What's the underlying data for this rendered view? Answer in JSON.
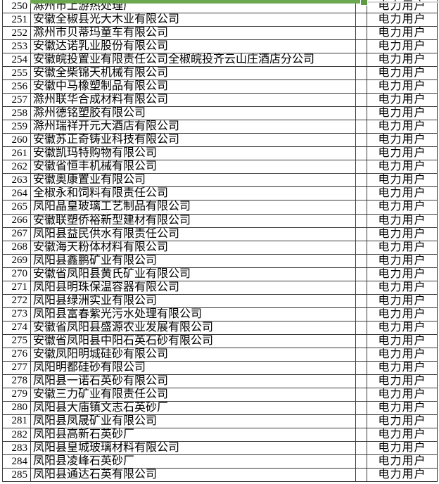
{
  "selection": {
    "border_color": "#6CA850",
    "handle_color": "#5E9A43"
  },
  "table": {
    "rows": [
      {
        "no": "250",
        "name": "滁州市上游热处理厂",
        "type": "电力用户"
      },
      {
        "no": "251",
        "name": "安徽全椒县光大木业有限公司",
        "type": "电力用户"
      },
      {
        "no": "252",
        "name": "滁州市贝蒂玛童车有限公司",
        "type": "电力用户"
      },
      {
        "no": "253",
        "name": "安徽达诺乳业股份有限公司",
        "type": "电力用户"
      },
      {
        "no": "254",
        "name": "安徽皖投置业有限责任公司全椒皖投齐云山庄酒店分公司",
        "type": "电力用户"
      },
      {
        "no": "255",
        "name": "安徽全柴锦天机械有限公司",
        "type": "电力用户"
      },
      {
        "no": "256",
        "name": "安徽中马橡塑制品有限公司",
        "type": "电力用户"
      },
      {
        "no": "257",
        "name": "滁州联华合成材料有限公司",
        "type": "电力用户"
      },
      {
        "no": "258",
        "name": "滁州德铭塑胶有限公司",
        "type": "电力用户"
      },
      {
        "no": "259",
        "name": "滁州瑞祥开元大酒店有限公司",
        "type": "电力用户"
      },
      {
        "no": "260",
        "name": "安徽苏正奇铸业科技有限公司",
        "type": "电力用户"
      },
      {
        "no": "261",
        "name": "安徽凯玛特购物有限公司",
        "type": "电力用户"
      },
      {
        "no": "262",
        "name": "安徽省恒丰机械有限公司",
        "type": "电力用户"
      },
      {
        "no": "263",
        "name": "安徽奥康置业有限公司",
        "type": "电力用户"
      },
      {
        "no": "264",
        "name": "全椒永和饲料有限责任公司",
        "type": "电力用户"
      },
      {
        "no": "265",
        "name": "凤阳晶皇玻璃工艺制品有限公司",
        "type": "电力用户"
      },
      {
        "no": "266",
        "name": "安徽联塑侨裕新型建材有限公司",
        "type": "电力用户"
      },
      {
        "no": "267",
        "name": "凤阳县益民供水有限责任公司",
        "type": "电力用户"
      },
      {
        "no": "268",
        "name": "安徽海天粉体材料有限公司",
        "type": "电力用户"
      },
      {
        "no": "269",
        "name": "凤阳县鑫鹏矿业有限公司",
        "type": "电力用户"
      },
      {
        "no": "270",
        "name": "安徽省凤阳县黄氏矿业有限公司",
        "type": "电力用户"
      },
      {
        "no": "271",
        "name": "凤阳县明珠保温容器有限公司",
        "type": "电力用户"
      },
      {
        "no": "272",
        "name": "凤阳县绿洲实业有限公司",
        "type": "电力用户"
      },
      {
        "no": "273",
        "name": "凤阳县富春紫光污水处理有限公司",
        "type": "电力用户"
      },
      {
        "no": "274",
        "name": "安徽省凤阳县盛源农业发展有限公司",
        "type": "电力用户"
      },
      {
        "no": "275",
        "name": "安徽省凤阳县中阳石英石砂有限公司",
        "type": "电力用户"
      },
      {
        "no": "276",
        "name": "安徽凤阳明城硅砂有限公司",
        "type": "电力用户"
      },
      {
        "no": "277",
        "name": "凤阳明都硅砂有限公司",
        "type": "电力用户"
      },
      {
        "no": "278",
        "name": "凤阳县一诺石英砂有限公司",
        "type": "电力用户"
      },
      {
        "no": "279",
        "name": "安徽三力矿业有限责任公司",
        "type": "电力用户"
      },
      {
        "no": "280",
        "name": "凤阳县大庙镇文志石英砂厂",
        "type": "电力用户"
      },
      {
        "no": "281",
        "name": "凤阳县凤晟矿业有限公司",
        "type": "电力用户"
      },
      {
        "no": "282",
        "name": "凤阳县高新石英砂厂",
        "type": "电力用户"
      },
      {
        "no": "283",
        "name": "凤阳县皇城玻璃材料有限公司",
        "type": "电力用户"
      },
      {
        "no": "284",
        "name": "凤阳县凌峰石英砂厂",
        "type": "电力用户"
      },
      {
        "no": "285",
        "name": "凤阳县通达石英有限公司",
        "type": "电力用户"
      }
    ]
  }
}
